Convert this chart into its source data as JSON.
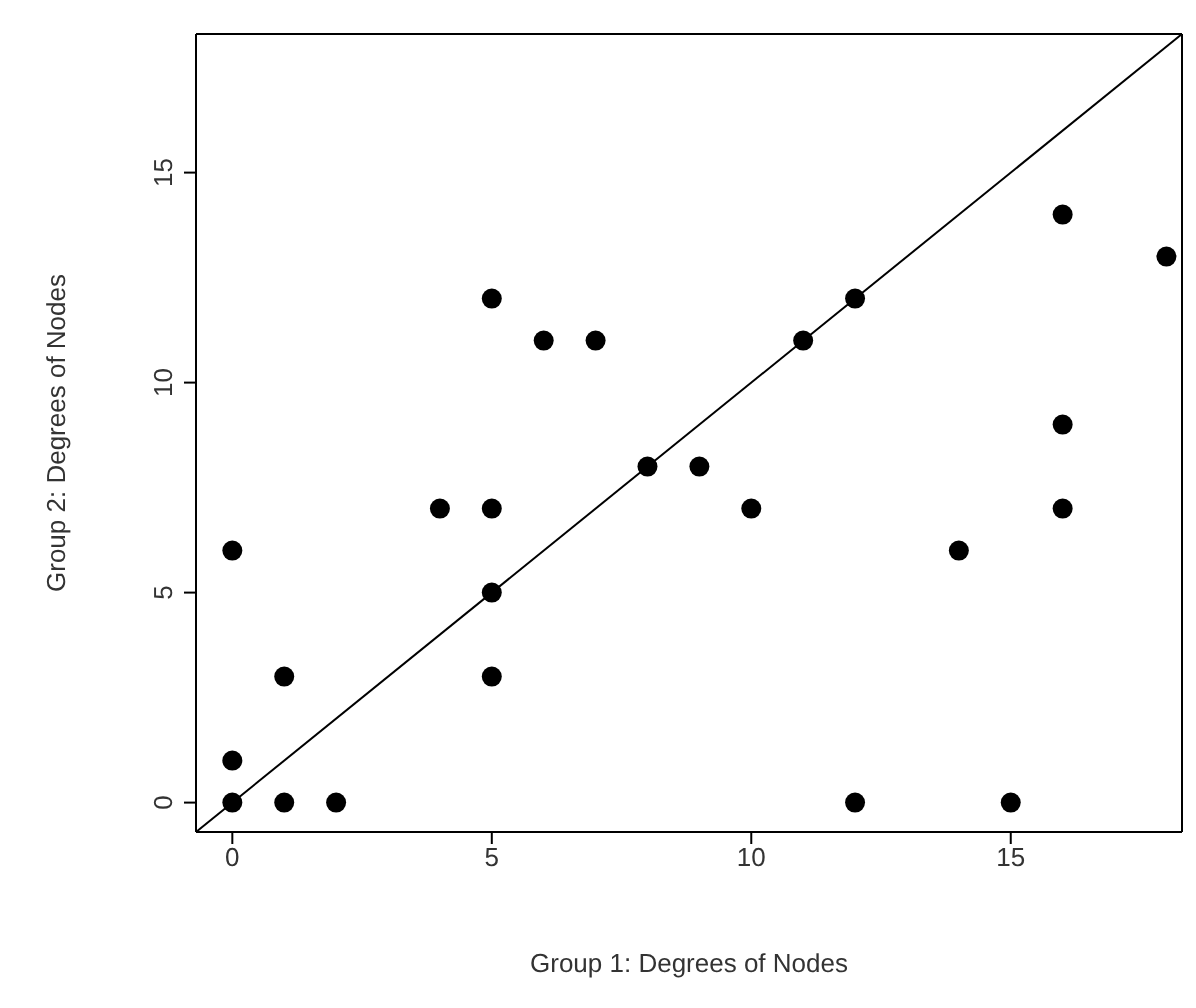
{
  "chart_data": {
    "type": "scatter",
    "xlabel": "Group 1: Degrees of Nodes",
    "ylabel": "Group 2: Degrees of Nodes",
    "xlim": [
      -0.7,
      18.3
    ],
    "ylim": [
      -0.7,
      18.3
    ],
    "xticks": [
      0,
      5,
      10,
      15
    ],
    "yticks": [
      0,
      5,
      10,
      15
    ],
    "grid": false,
    "legend": false,
    "marker": "circle",
    "series": [
      {
        "color": "#000000",
        "x": [
          0,
          0,
          0,
          1,
          1,
          2,
          4,
          5,
          5,
          5,
          5,
          6,
          7,
          8,
          9,
          10,
          11,
          12,
          12,
          14,
          15,
          16,
          16,
          16,
          18
        ],
        "values": [
          6,
          1,
          0,
          3,
          0,
          0,
          7,
          12,
          7,
          5,
          3,
          11,
          11,
          8,
          8,
          7,
          11,
          12,
          0,
          6,
          0,
          14,
          9,
          7,
          13
        ]
      },
      {
        "type": "line",
        "color": "#000000",
        "x": [
          -0.7,
          18.3
        ],
        "values": [
          -0.7,
          18.3
        ],
        "marker": "none",
        "line_style": "solid"
      }
    ]
  }
}
